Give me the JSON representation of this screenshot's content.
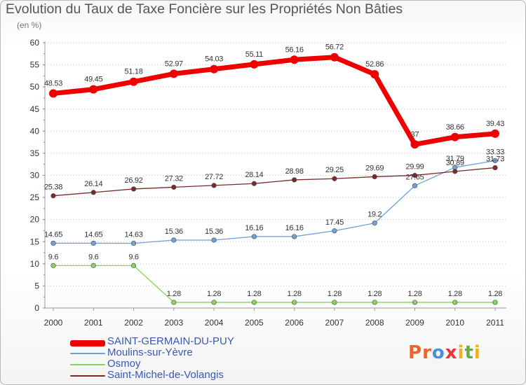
{
  "chart_data": {
    "type": "line",
    "title": "Evolution du Taux de Taxe Foncière sur les Propriétés Non Bâties",
    "subtitle": "(en %)",
    "categories": [
      "2000",
      "2001",
      "2002",
      "2003",
      "2004",
      "2005",
      "2006",
      "2007",
      "2008",
      "2009",
      "2010",
      "2011"
    ],
    "ylim": [
      0,
      60
    ],
    "yticks": [
      0,
      5,
      10,
      15,
      20,
      25,
      30,
      35,
      40,
      45,
      50,
      55,
      60
    ],
    "grid": "horizontal dotted",
    "series": [
      {
        "name": "SAINT-GERMAIN-DU-PUY",
        "color": "#ee0000",
        "values": [
          48.53,
          49.45,
          51.18,
          52.97,
          54.03,
          55.11,
          56.16,
          56.72,
          52.86,
          37,
          38.66,
          39.43
        ],
        "labels": [
          "48.53",
          "49.45",
          "51.18",
          "52.97",
          "54.03",
          "55.11",
          "56.16",
          "56.72",
          "52.86",
          "37",
          "38.66",
          "39.43"
        ]
      },
      {
        "name": "Moulins-sur-Yèvre",
        "color": "#6fa1d6",
        "values": [
          14.65,
          14.65,
          14.63,
          15.36,
          15.36,
          16.16,
          16.16,
          17.45,
          19.2,
          27.65,
          31.79,
          33.33
        ],
        "labels": [
          "14.65",
          "14.65",
          "14.63",
          "15.36",
          "15.36",
          "16.16",
          "16.16",
          "17.45",
          "19.2",
          "27.65",
          "31.79",
          "33.33"
        ]
      },
      {
        "name": "Osmoy",
        "color": "#88d45a",
        "values": [
          9.6,
          9.6,
          9.6,
          1.28,
          1.28,
          1.28,
          1.28,
          1.28,
          1.28,
          1.28,
          1.28,
          1.28
        ],
        "labels": [
          "9.6",
          "9.6",
          "9.6",
          "1.28",
          "1.28",
          "1.28",
          "1.28",
          "1.28",
          "1.28",
          "1.28",
          "1.28",
          "1.28"
        ]
      },
      {
        "name": "Saint-Michel-de-Volangis",
        "color": "#7a2a2a",
        "values": [
          25.38,
          26.14,
          26.92,
          27.32,
          27.72,
          28.14,
          28.98,
          29.25,
          29.69,
          29.99,
          30.89,
          31.73
        ],
        "labels": [
          "25.38",
          "26.14",
          "26.92",
          "27.32",
          "27.72",
          "28.14",
          "28.98",
          "29.25",
          "29.69",
          "29.99",
          "30.89",
          "31.73"
        ]
      }
    ]
  },
  "brand": {
    "letters": [
      "P",
      "r",
      "o",
      "x",
      "i",
      "t",
      "i"
    ],
    "colors": [
      "#e8662a",
      "#e8662a",
      "#4a90d9",
      "#e33",
      "#f0b020",
      "#5db14a",
      "#f0b020"
    ]
  }
}
